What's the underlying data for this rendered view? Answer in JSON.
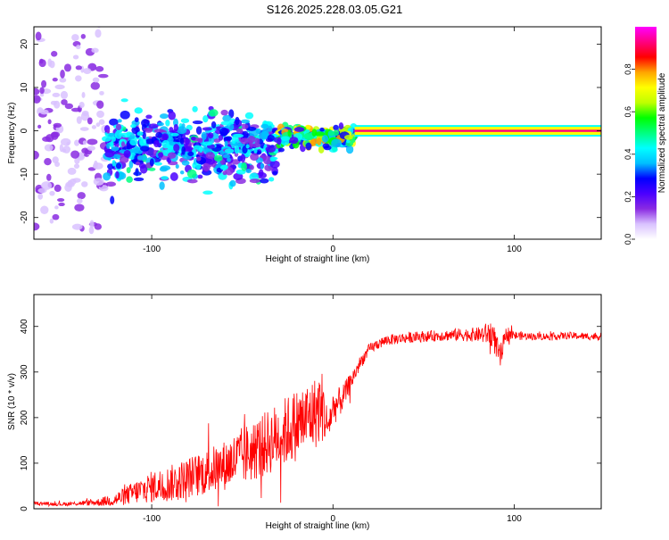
{
  "title": "S126.2025.228.03.05.G21",
  "chart_data": [
    {
      "type": "heatmap",
      "name": "spectrogram",
      "xlabel": "Height of straight line (km)",
      "ylabel": "Frequency (Hz)",
      "xlim": [
        -165,
        148
      ],
      "ylim": [
        -25,
        24
      ],
      "xticks": [
        -100,
        0,
        100
      ],
      "yticks": [
        -20,
        -10,
        0,
        10,
        20
      ],
      "colorbar": {
        "label": "Normalized spectral amplitude",
        "range": [
          0,
          1
        ],
        "ticks": [
          0.0,
          0.2,
          0.4,
          0.6,
          0.8
        ],
        "tick_labels": [
          "0.0",
          "0.2",
          "0.4",
          "0.6",
          "0.8"
        ],
        "colors": [
          "#ffffff",
          "#d9c2ff",
          "#8a2be2",
          "#4b00ff",
          "#0000ff",
          "#00bfff",
          "#00ffff",
          "#00ff80",
          "#00ff00",
          "#bfff00",
          "#ffff00",
          "#ffa500",
          "#ff0000",
          "#ff0080",
          "#ff00ff"
        ]
      },
      "trace": {
        "description": "Noisy scatter at low heights converging to a narrow high-amplitude line near 0 Hz above ~ -30 km",
        "segments": [
          {
            "x_start": -165,
            "x_end": -125,
            "center_hz": 0,
            "spread_hz": 24,
            "amplitude": 0.1
          },
          {
            "x_start": -125,
            "x_end": -30,
            "center_hz": -4,
            "spread_hz": 6,
            "amplitude": 0.3
          },
          {
            "x_start": -30,
            "x_end": 12,
            "center_hz": -1.5,
            "spread_hz": 2,
            "amplitude": 0.5
          },
          {
            "x_start": 12,
            "x_end": 148,
            "center_hz": 0,
            "spread_hz": 0.6,
            "amplitude": 0.95
          }
        ]
      }
    },
    {
      "type": "line",
      "name": "snr",
      "xlabel": "Height of straight line (km)",
      "ylabel": "SNR (10 * v/v)",
      "xlim": [
        -165,
        148
      ],
      "ylim": [
        0,
        470
      ],
      "xticks": [
        -100,
        0,
        100
      ],
      "yticks": [
        0,
        100,
        200,
        300,
        400
      ],
      "color": "#ff0000",
      "series": [
        {
          "name": "SNR",
          "x": [
            -165,
            -150,
            -140,
            -130,
            -120,
            -110,
            -100,
            -90,
            -80,
            -70,
            -60,
            -50,
            -40,
            -30,
            -20,
            -10,
            -6,
            -3,
            0,
            5,
            10,
            15,
            20,
            25,
            30,
            40,
            50,
            60,
            70,
            80,
            88,
            92,
            96,
            100,
            110,
            120,
            130,
            140,
            148
          ],
          "y": [
            12,
            10,
            12,
            14,
            20,
            35,
            48,
            55,
            68,
            80,
            95,
            115,
            135,
            160,
            185,
            210,
            225,
            180,
            220,
            240,
            280,
            320,
            350,
            362,
            370,
            375,
            378,
            380,
            382,
            382,
            385,
            330,
            385,
            380,
            378,
            378,
            380,
            378,
            378
          ],
          "noise": [
            3,
            4,
            5,
            8,
            15,
            25,
            35,
            40,
            45,
            50,
            55,
            65,
            70,
            75,
            80,
            80,
            80,
            40,
            40,
            30,
            20,
            15,
            12,
            12,
            12,
            12,
            12,
            12,
            14,
            16,
            30,
            30,
            18,
            10,
            8,
            8,
            8,
            8,
            8
          ]
        }
      ]
    }
  ]
}
